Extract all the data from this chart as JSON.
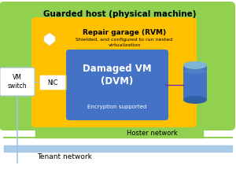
{
  "bg_color": "#ffffff",
  "guarded_host_color": "#92d050",
  "guarded_host_label": "Guarded host (physical machine)",
  "repair_garage_color": "#ffc000",
  "repair_garage_label": "Repair garage (RVM)",
  "repair_garage_sublabel": "Shielded, and configured to run nested\nvirtualization",
  "dvm_color": "#4472c4",
  "dvm_label": "Damaged VM\n(DVM)",
  "dvm_sublabel": "Encryption supported",
  "vm_switch_label": "VM\nswitch",
  "nic_label": "NIC",
  "hoster_network_label": "Hoster network",
  "tenant_network_label": "Tenant network",
  "shield_color": "#ffffff",
  "cylinder_color": "#4472c4",
  "cylinder_top_color": "#7fb3d3",
  "cylinder_mid_color": "#5a8fc4",
  "nic_border_color": "#ffc000",
  "vm_switch_border_color": "#9dc3e6",
  "connect_line_color": "#7030a0",
  "hoster_line_color": "#92d050",
  "tenant_line_color": "#9dc3e6",
  "vertical_line_color": "#9dc3e6"
}
